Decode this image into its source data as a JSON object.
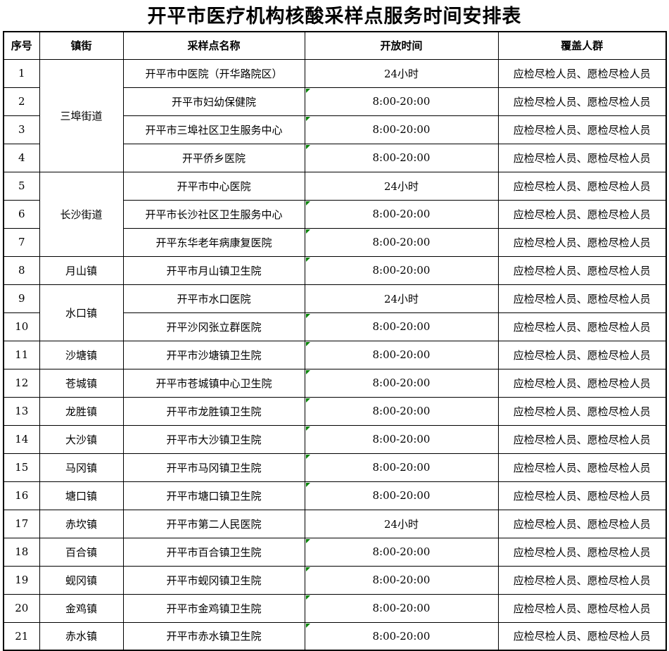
{
  "title": "开平市医疗机构核酸采样点服务时间安排表",
  "table": {
    "marker_color": "#008000",
    "columns": [
      {
        "key": "no",
        "label": "序号"
      },
      {
        "key": "town",
        "label": "镇街"
      },
      {
        "key": "site",
        "label": "采样点名称"
      },
      {
        "key": "time",
        "label": "开放时间"
      },
      {
        "key": "coverage",
        "label": "覆盖人群"
      }
    ],
    "rows": [
      {
        "no": "1",
        "town": "三埠街道",
        "town_rowspan": 4,
        "site": "开平市中医院（开华路院区）",
        "time": "24小时",
        "time_marker": false,
        "coverage": "应检尽检人员、愿检尽检人员"
      },
      {
        "no": "2",
        "site": "开平市妇幼保健院",
        "time": "8:00-20:00",
        "time_marker": true,
        "coverage": "应检尽检人员、愿检尽检人员"
      },
      {
        "no": "3",
        "site": "开平市三埠社区卫生服务中心",
        "time": "8:00-20:00",
        "time_marker": true,
        "coverage": "应检尽检人员、愿检尽检人员"
      },
      {
        "no": "4",
        "site": "开平侨乡医院",
        "time": "8:00-20:00",
        "time_marker": true,
        "coverage": "应检尽检人员、愿检尽检人员"
      },
      {
        "no": "5",
        "town": "长沙街道",
        "town_rowspan": 3,
        "site": "开平市中心医院",
        "time": "24小时",
        "time_marker": false,
        "coverage": "应检尽检人员、愿检尽检人员"
      },
      {
        "no": "6",
        "site": "开平市长沙社区卫生服务中心",
        "time": "8:00-20:00",
        "time_marker": true,
        "coverage": "应检尽检人员、愿检尽检人员"
      },
      {
        "no": "7",
        "site": "开平东华老年病康复医院",
        "time": "8:00-20:00",
        "time_marker": true,
        "coverage": "应检尽检人员、愿检尽检人员"
      },
      {
        "no": "8",
        "town": "月山镇",
        "town_rowspan": 1,
        "site": "开平市月山镇卫生院",
        "time": "8:00-20:00",
        "time_marker": true,
        "coverage": "应检尽检人员、愿检尽检人员"
      },
      {
        "no": "9",
        "town": "水口镇",
        "town_rowspan": 2,
        "site": "开平市水口医院",
        "time": "24小时",
        "time_marker": false,
        "coverage": "应检尽检人员、愿检尽检人员"
      },
      {
        "no": "10",
        "site": "开平沙冈张立群医院",
        "time": "8:00-20:00",
        "time_marker": true,
        "coverage": "应检尽检人员、愿检尽检人员"
      },
      {
        "no": "11",
        "town": "沙塘镇",
        "town_rowspan": 1,
        "site": "开平市沙塘镇卫生院",
        "time": "8:00-20:00",
        "time_marker": true,
        "coverage": "应检尽检人员、愿检尽检人员"
      },
      {
        "no": "12",
        "town": "苍城镇",
        "town_rowspan": 1,
        "site": "开平市苍城镇中心卫生院",
        "time": "8:00-20:00",
        "time_marker": true,
        "coverage": "应检尽检人员、愿检尽检人员"
      },
      {
        "no": "13",
        "town": "龙胜镇",
        "town_rowspan": 1,
        "site": "开平市龙胜镇卫生院",
        "time": "8:00-20:00",
        "time_marker": true,
        "coverage": "应检尽检人员、愿检尽检人员"
      },
      {
        "no": "14",
        "town": "大沙镇",
        "town_rowspan": 1,
        "site": "开平市大沙镇卫生院",
        "time": "8:00-20:00",
        "time_marker": true,
        "coverage": "应检尽检人员、愿检尽检人员"
      },
      {
        "no": "15",
        "town": "马冈镇",
        "town_rowspan": 1,
        "site": "开平市马冈镇卫生院",
        "time": "8:00-20:00",
        "time_marker": true,
        "coverage": "应检尽检人员、愿检尽检人员"
      },
      {
        "no": "16",
        "town": "塘口镇",
        "town_rowspan": 1,
        "site": "开平市塘口镇卫生院",
        "time": "8:00-20:00",
        "time_marker": true,
        "coverage": "应检尽检人员、愿检尽检人员"
      },
      {
        "no": "17",
        "town": "赤坎镇",
        "town_rowspan": 1,
        "site": "开平市第二人民医院",
        "time": "24小时",
        "time_marker": false,
        "coverage": "应检尽检人员、愿检尽检人员"
      },
      {
        "no": "18",
        "town": "百合镇",
        "town_rowspan": 1,
        "site": "开平市百合镇卫生院",
        "time": "8:00-20:00",
        "time_marker": true,
        "coverage": "应检尽检人员、愿检尽检人员"
      },
      {
        "no": "19",
        "town": "蚬冈镇",
        "town_rowspan": 1,
        "site": "开平市蚬冈镇卫生院",
        "time": "8:00-20:00",
        "time_marker": true,
        "coverage": "应检尽检人员、愿检尽检人员"
      },
      {
        "no": "20",
        "town": "金鸡镇",
        "town_rowspan": 1,
        "site": "开平市金鸡镇卫生院",
        "time": "8:00-20:00",
        "time_marker": true,
        "coverage": "应检尽检人员、愿检尽检人员"
      },
      {
        "no": "21",
        "town": "赤水镇",
        "town_rowspan": 1,
        "site": "开平市赤水镇卫生院",
        "time": "8:00-20:00",
        "time_marker": true,
        "coverage": "应检尽检人员、愿检尽检人员"
      }
    ]
  }
}
